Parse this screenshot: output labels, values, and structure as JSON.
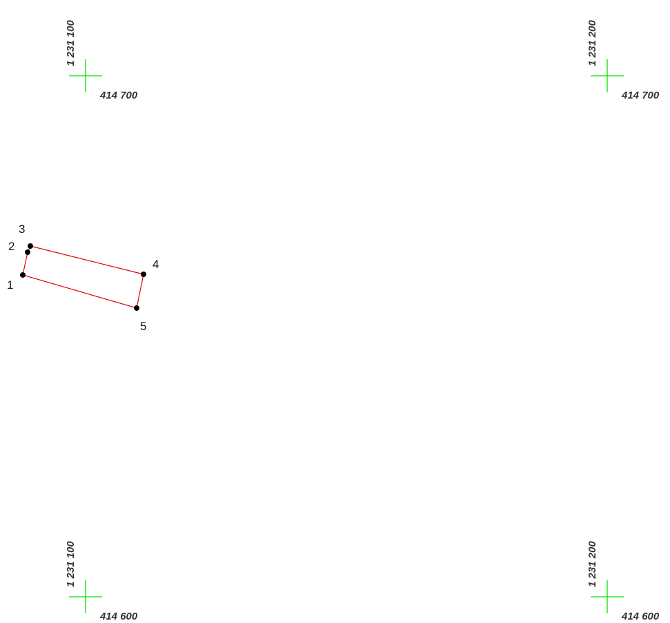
{
  "colors": {
    "background": "#ffffff",
    "grid_cross": "#00e000",
    "parcel_outline": "#e00000",
    "point_marker": "#000000",
    "coord_text": "#333333",
    "point_text": "#111111"
  },
  "grid_crosses": [
    {
      "id": "top-left",
      "x_label": "414 700",
      "y_label": "1 231 100"
    },
    {
      "id": "top-right",
      "x_label": "414 700",
      "y_label": "1 231 200"
    },
    {
      "id": "bottom-left",
      "x_label": "414 600",
      "y_label": "1 231 100"
    },
    {
      "id": "bottom-right",
      "x_label": "414 600",
      "y_label": "1 231 200"
    }
  ],
  "parcel": {
    "points": [
      {
        "id": "p1",
        "label": "1"
      },
      {
        "id": "p2",
        "label": "2"
      },
      {
        "id": "p3",
        "label": "3"
      },
      {
        "id": "p4",
        "label": "4"
      },
      {
        "id": "p5",
        "label": "5"
      }
    ]
  }
}
